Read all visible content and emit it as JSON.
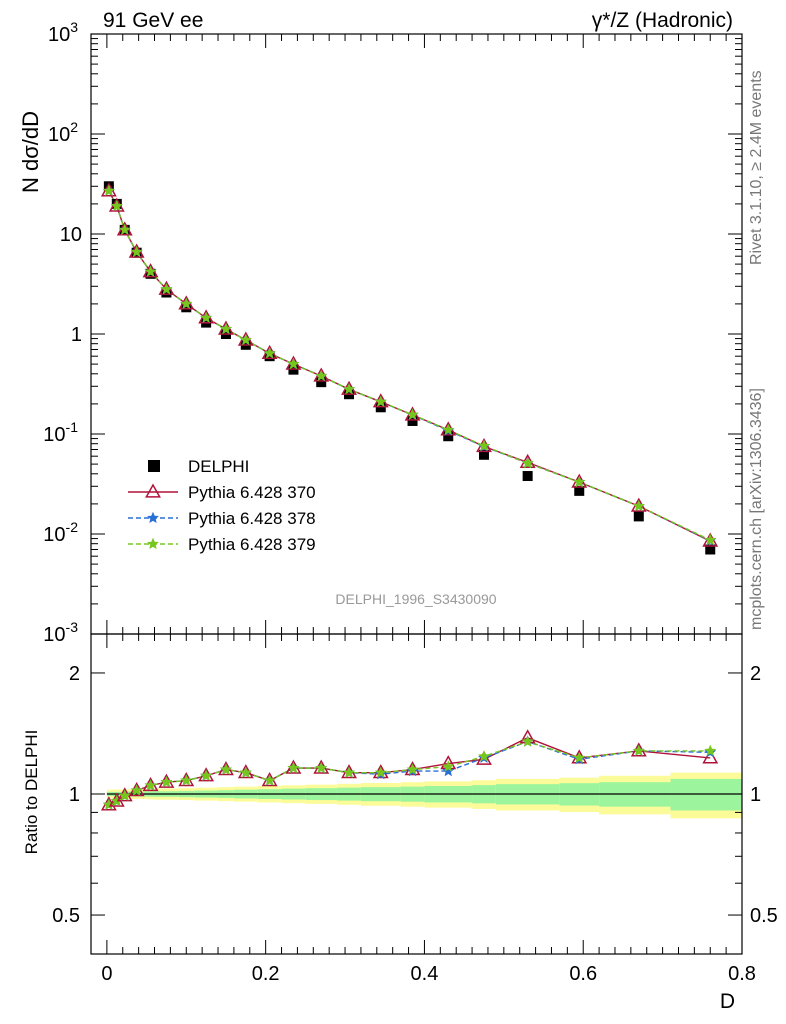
{
  "header": {
    "left_label": "91 GeV ee",
    "right_label": "γ*/Z (Hadronic)"
  },
  "side_labels": {
    "rivet": "Rivet 3.1.10, ≥ 2.4M events",
    "mcplots": "mcplots.cern.ch [arXiv:1306.3436]"
  },
  "analysis_id": "DELPHI_1996_S3430090",
  "colors": {
    "data": "#000000",
    "p370": "#b0123a",
    "p378": "#2a6fd6",
    "p379": "#76c61e",
    "band_inner": "#9cf59c",
    "band_outer": "#fbfb9a"
  },
  "chart_data": [
    {
      "type": "scatter",
      "ylabel": "N dσ/dD",
      "yscale": "log",
      "ylim": [
        0.001,
        1000
      ],
      "xlim": [
        -0.02,
        0.8
      ],
      "y_tick_labels": [
        "10^-3",
        "10^-2",
        "10^-1",
        "1",
        "10",
        "10^2",
        "10^3"
      ],
      "x": [
        0.0025,
        0.0125,
        0.0225,
        0.0375,
        0.055,
        0.075,
        0.1,
        0.125,
        0.15,
        0.175,
        0.205,
        0.235,
        0.27,
        0.305,
        0.345,
        0.385,
        0.43,
        0.475,
        0.53,
        0.595,
        0.67,
        0.76
      ],
      "series": [
        {
          "name": "DELPHI",
          "marker": "square",
          "values": [
            30,
            20,
            11,
            6.5,
            4.0,
            2.6,
            1.85,
            1.3,
            1.0,
            0.78,
            0.6,
            0.44,
            0.33,
            0.25,
            0.185,
            0.135,
            0.095,
            0.062,
            0.038,
            0.027,
            0.015,
            0.007
          ]
        },
        {
          "name": "Pythia 6.428 370",
          "marker": "open-triangle",
          "values": [
            27,
            19,
            11,
            6.6,
            4.2,
            2.8,
            2.0,
            1.45,
            1.12,
            0.87,
            0.64,
            0.5,
            0.38,
            0.28,
            0.21,
            0.155,
            0.11,
            0.075,
            0.052,
            0.033,
            0.019,
            0.0085
          ]
        },
        {
          "name": "Pythia 6.428 378",
          "marker": "star",
          "values": [
            27,
            19,
            11,
            6.6,
            4.2,
            2.8,
            2.0,
            1.45,
            1.12,
            0.87,
            0.64,
            0.5,
            0.38,
            0.28,
            0.21,
            0.155,
            0.108,
            0.075,
            0.051,
            0.033,
            0.019,
            0.0086
          ]
        },
        {
          "name": "Pythia 6.428 379",
          "marker": "star",
          "values": [
            27,
            19,
            11,
            6.6,
            4.2,
            2.8,
            2.0,
            1.45,
            1.12,
            0.87,
            0.64,
            0.5,
            0.38,
            0.28,
            0.21,
            0.156,
            0.11,
            0.076,
            0.051,
            0.033,
            0.019,
            0.0087
          ]
        }
      ],
      "legend": "middle-left"
    },
    {
      "type": "line",
      "ylabel": "Ratio to DELPHI",
      "xlabel": "D",
      "yscale": "log",
      "ylim": [
        0.4,
        2.5
      ],
      "xlim": [
        -0.02,
        0.8
      ],
      "y_tick_labels": [
        "0.5",
        "1",
        "2"
      ],
      "x_tick_labels": [
        "0",
        "0.2",
        "0.4",
        "0.6",
        "0.8"
      ],
      "x": [
        0.0025,
        0.0125,
        0.0225,
        0.0375,
        0.055,
        0.075,
        0.1,
        0.125,
        0.15,
        0.175,
        0.205,
        0.235,
        0.27,
        0.305,
        0.345,
        0.385,
        0.43,
        0.475,
        0.53,
        0.595,
        0.67,
        0.76
      ],
      "bin_edges": [
        0,
        0.005,
        0.02,
        0.025,
        0.05,
        0.06,
        0.09,
        0.11,
        0.14,
        0.16,
        0.19,
        0.22,
        0.25,
        0.29,
        0.32,
        0.37,
        0.4,
        0.46,
        0.49,
        0.57,
        0.62,
        0.71,
        0.8
      ],
      "band_inner_halfwidth": [
        0.012,
        0.012,
        0.013,
        0.014,
        0.015,
        0.016,
        0.018,
        0.02,
        0.022,
        0.025,
        0.028,
        0.031,
        0.034,
        0.037,
        0.04,
        0.043,
        0.047,
        0.052,
        0.058,
        0.064,
        0.07,
        0.09
      ],
      "band_outer_halfwidth": [
        0.025,
        0.026,
        0.027,
        0.028,
        0.03,
        0.032,
        0.034,
        0.037,
        0.04,
        0.043,
        0.047,
        0.051,
        0.055,
        0.06,
        0.065,
        0.07,
        0.075,
        0.082,
        0.09,
        0.098,
        0.11,
        0.13
      ],
      "series": [
        {
          "name": "Pythia 6.428 370",
          "values": [
            0.94,
            0.96,
            0.99,
            1.02,
            1.05,
            1.07,
            1.08,
            1.11,
            1.15,
            1.13,
            1.08,
            1.16,
            1.16,
            1.13,
            1.13,
            1.15,
            1.19,
            1.22,
            1.38,
            1.23,
            1.28,
            1.23
          ]
        },
        {
          "name": "Pythia 6.428 378",
          "values": [
            0.94,
            0.96,
            0.99,
            1.02,
            1.05,
            1.07,
            1.08,
            1.11,
            1.15,
            1.13,
            1.08,
            1.16,
            1.16,
            1.13,
            1.12,
            1.14,
            1.14,
            1.23,
            1.35,
            1.22,
            1.28,
            1.27
          ]
        },
        {
          "name": "Pythia 6.428 379",
          "values": [
            0.94,
            0.96,
            0.99,
            1.02,
            1.05,
            1.07,
            1.08,
            1.11,
            1.15,
            1.13,
            1.08,
            1.16,
            1.16,
            1.13,
            1.13,
            1.15,
            1.17,
            1.24,
            1.35,
            1.23,
            1.28,
            1.28
          ]
        }
      ]
    }
  ]
}
